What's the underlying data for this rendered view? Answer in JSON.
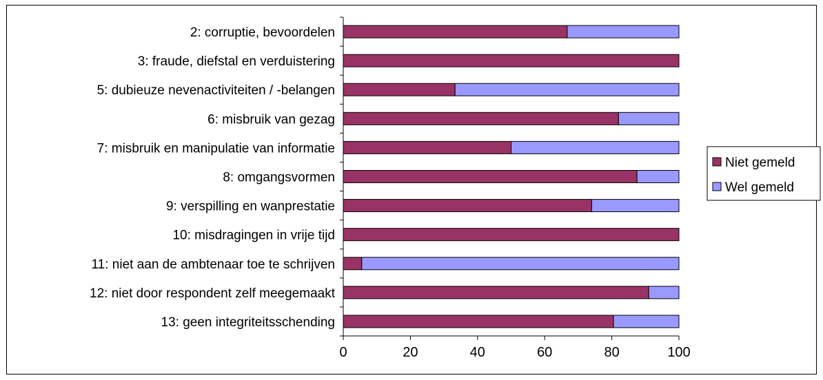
{
  "chart_data": {
    "type": "bar",
    "orientation": "horizontal",
    "stacked": true,
    "categories": [
      "2: corruptie, bevoordelen",
      "3: fraude, diefstal en verduistering",
      "5: dubieuze nevenactiviteiten / -belangen",
      "6: misbruik van gezag",
      "7: misbruik en manipulatie van informatie",
      "8: omgangsvormen",
      "9: verspilling en wanprestatie",
      "10: misdragingen in vrije tijd",
      "11: niet aan de ambtenaar toe te schrijven",
      "12: niet door respondent zelf meegemaakt",
      "13: geen integriteitsschending"
    ],
    "series": [
      {
        "name": "Niet gemeld",
        "color": "#993366",
        "values": [
          66.7,
          100,
          33.3,
          82,
          50,
          87.5,
          74,
          100,
          5.5,
          91,
          80.5
        ]
      },
      {
        "name": "Wel gemeld",
        "color": "#9999ff",
        "values": [
          33.3,
          0,
          66.7,
          18,
          50,
          12.5,
          26,
          0,
          94.5,
          9,
          19.5
        ]
      }
    ],
    "xlim": [
      0,
      100
    ],
    "xticks": [
      "0",
      "20",
      "40",
      "60",
      "80",
      "100"
    ],
    "grid": false,
    "legend_position": "right"
  }
}
